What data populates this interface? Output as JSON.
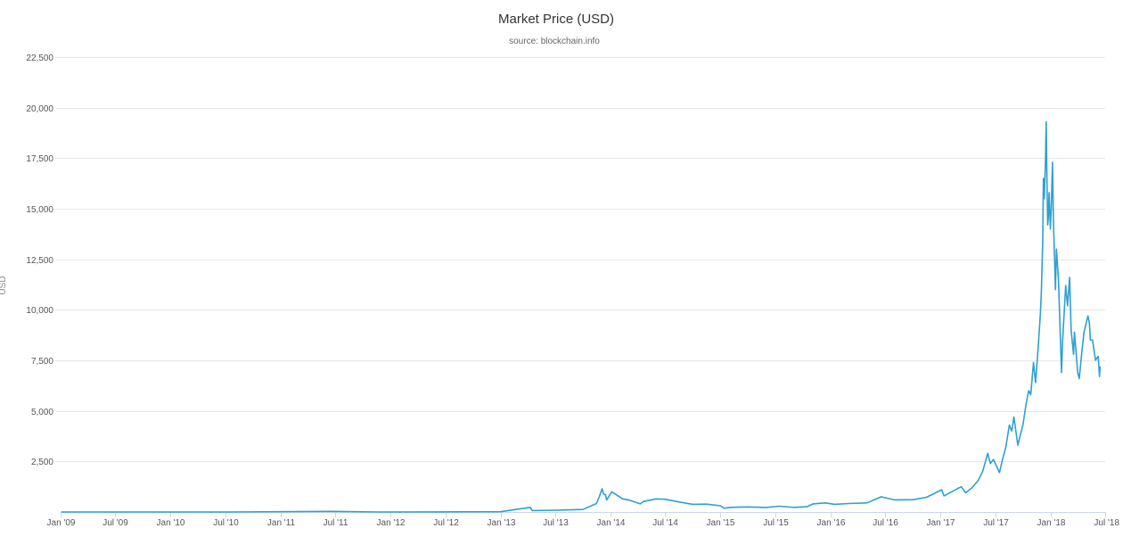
{
  "chart_data": {
    "type": "line",
    "title": "Market Price (USD)",
    "subtitle": "source: blockchain.info",
    "ylabel": "USD",
    "xlabel": "",
    "ylim": [
      0,
      22500
    ],
    "xlim": [
      "2009-01-01",
      "2018-07-01"
    ],
    "grid": true,
    "legend": "none",
    "color": "#2fa0d0",
    "y_ticks": [
      {
        "value": 2500,
        "label": "2,500"
      },
      {
        "value": 5000,
        "label": "5,000"
      },
      {
        "value": 7500,
        "label": "7,500"
      },
      {
        "value": 10000,
        "label": "10,000"
      },
      {
        "value": 12500,
        "label": "12,500"
      },
      {
        "value": 15000,
        "label": "15,000"
      },
      {
        "value": 17500,
        "label": "17,500"
      },
      {
        "value": 20000,
        "label": "20,000"
      },
      {
        "value": 22500,
        "label": "22,500"
      }
    ],
    "x_ticks": [
      {
        "date": "2009-01-01",
        "label": "Jan '09"
      },
      {
        "date": "2009-07-01",
        "label": "Jul '09"
      },
      {
        "date": "2010-01-01",
        "label": "Jan '10"
      },
      {
        "date": "2010-07-01",
        "label": "Jul '10"
      },
      {
        "date": "2011-01-01",
        "label": "Jan '11"
      },
      {
        "date": "2011-07-01",
        "label": "Jul '11"
      },
      {
        "date": "2012-01-01",
        "label": "Jan '12"
      },
      {
        "date": "2012-07-01",
        "label": "Jul '12"
      },
      {
        "date": "2013-01-01",
        "label": "Jan '13"
      },
      {
        "date": "2013-07-01",
        "label": "Jul '13"
      },
      {
        "date": "2014-01-01",
        "label": "Jan '14"
      },
      {
        "date": "2014-07-01",
        "label": "Jul '14"
      },
      {
        "date": "2015-01-01",
        "label": "Jan '15"
      },
      {
        "date": "2015-07-01",
        "label": "Jul '15"
      },
      {
        "date": "2016-01-01",
        "label": "Jan '16"
      },
      {
        "date": "2016-07-01",
        "label": "Jul '16"
      },
      {
        "date": "2017-01-01",
        "label": "Jan '17"
      },
      {
        "date": "2017-07-01",
        "label": "Jul '17"
      },
      {
        "date": "2018-01-01",
        "label": "Jan '18"
      },
      {
        "date": "2018-07-01",
        "label": "Jul '18"
      }
    ],
    "series": [
      {
        "points": [
          [
            "2009-01-03",
            0
          ],
          [
            "2010-07-17",
            0.05
          ],
          [
            "2011-06-08",
            30
          ],
          [
            "2011-11-20",
            2
          ],
          [
            "2012-06-01",
            5
          ],
          [
            "2012-12-31",
            13
          ],
          [
            "2013-04-09",
            230
          ],
          [
            "2013-04-16",
            70
          ],
          [
            "2013-07-01",
            90
          ],
          [
            "2013-10-01",
            125
          ],
          [
            "2013-11-15",
            420
          ],
          [
            "2013-11-25",
            780
          ],
          [
            "2013-12-04",
            1150
          ],
          [
            "2013-12-08",
            900
          ],
          [
            "2013-12-15",
            850
          ],
          [
            "2013-12-19",
            600
          ],
          [
            "2014-01-05",
            1000
          ],
          [
            "2014-02-10",
            650
          ],
          [
            "2014-03-01",
            600
          ],
          [
            "2014-04-10",
            400
          ],
          [
            "2014-04-20",
            520
          ],
          [
            "2014-06-01",
            650
          ],
          [
            "2014-07-01",
            630
          ],
          [
            "2014-08-15",
            500
          ],
          [
            "2014-10-01",
            380
          ],
          [
            "2014-11-15",
            390
          ],
          [
            "2015-01-01",
            310
          ],
          [
            "2015-01-14",
            180
          ],
          [
            "2015-02-01",
            230
          ],
          [
            "2015-04-01",
            250
          ],
          [
            "2015-06-01",
            225
          ],
          [
            "2015-07-15",
            285
          ],
          [
            "2015-09-01",
            230
          ],
          [
            "2015-10-15",
            260
          ],
          [
            "2015-11-04",
            400
          ],
          [
            "2015-12-15",
            450
          ],
          [
            "2016-01-15",
            380
          ],
          [
            "2016-03-01",
            420
          ],
          [
            "2016-05-01",
            450
          ],
          [
            "2016-06-17",
            750
          ],
          [
            "2016-08-01",
            600
          ],
          [
            "2016-10-01",
            610
          ],
          [
            "2016-11-15",
            730
          ],
          [
            "2017-01-04",
            1100
          ],
          [
            "2017-01-12",
            800
          ],
          [
            "2017-02-25",
            1150
          ],
          [
            "2017-03-10",
            1250
          ],
          [
            "2017-03-25",
            950
          ],
          [
            "2017-04-15",
            1200
          ],
          [
            "2017-05-05",
            1550
          ],
          [
            "2017-05-20",
            2000
          ],
          [
            "2017-06-06",
            2900
          ],
          [
            "2017-06-15",
            2400
          ],
          [
            "2017-06-25",
            2600
          ],
          [
            "2017-07-15",
            1950
          ],
          [
            "2017-07-25",
            2600
          ],
          [
            "2017-08-05",
            3200
          ],
          [
            "2017-08-17",
            4300
          ],
          [
            "2017-08-25",
            4000
          ],
          [
            "2017-09-01",
            4700
          ],
          [
            "2017-09-14",
            3300
          ],
          [
            "2017-09-22",
            3800
          ],
          [
            "2017-10-01",
            4300
          ],
          [
            "2017-10-12",
            5400
          ],
          [
            "2017-10-20",
            6000
          ],
          [
            "2017-10-27",
            5800
          ],
          [
            "2017-11-05",
            7400
          ],
          [
            "2017-11-12",
            6400
          ],
          [
            "2017-11-20",
            8000
          ],
          [
            "2017-11-28",
            9800
          ],
          [
            "2017-12-01",
            10900
          ],
          [
            "2017-12-06",
            13500
          ],
          [
            "2017-12-08",
            16500
          ],
          [
            "2017-12-11",
            15500
          ],
          [
            "2017-12-15",
            17500
          ],
          [
            "2017-12-17",
            19300
          ],
          [
            "2017-12-20",
            16000
          ],
          [
            "2017-12-22",
            14200
          ],
          [
            "2017-12-24",
            14500
          ],
          [
            "2017-12-27",
            15800
          ],
          [
            "2017-12-31",
            14000
          ],
          [
            "2018-01-03",
            15000
          ],
          [
            "2018-01-07",
            17300
          ],
          [
            "2018-01-10",
            14500
          ],
          [
            "2018-01-17",
            11000
          ],
          [
            "2018-01-20",
            13000
          ],
          [
            "2018-01-27",
            11500
          ],
          [
            "2018-02-01",
            9200
          ],
          [
            "2018-02-06",
            6900
          ],
          [
            "2018-02-10",
            8500
          ],
          [
            "2018-02-20",
            11200
          ],
          [
            "2018-02-26",
            10200
          ],
          [
            "2018-03-05",
            11600
          ],
          [
            "2018-03-10",
            9000
          ],
          [
            "2018-03-18",
            7800
          ],
          [
            "2018-03-21",
            8900
          ],
          [
            "2018-04-01",
            6900
          ],
          [
            "2018-04-06",
            6600
          ],
          [
            "2018-04-15",
            8000
          ],
          [
            "2018-04-22",
            8900
          ],
          [
            "2018-05-05",
            9700
          ],
          [
            "2018-05-10",
            9300
          ],
          [
            "2018-05-13",
            8500
          ],
          [
            "2018-05-20",
            8500
          ],
          [
            "2018-05-30",
            7500
          ],
          [
            "2018-06-03",
            7600
          ],
          [
            "2018-06-08",
            7700
          ],
          [
            "2018-06-12",
            6700
          ],
          [
            "2018-06-14",
            7200
          ]
        ]
      }
    ]
  }
}
